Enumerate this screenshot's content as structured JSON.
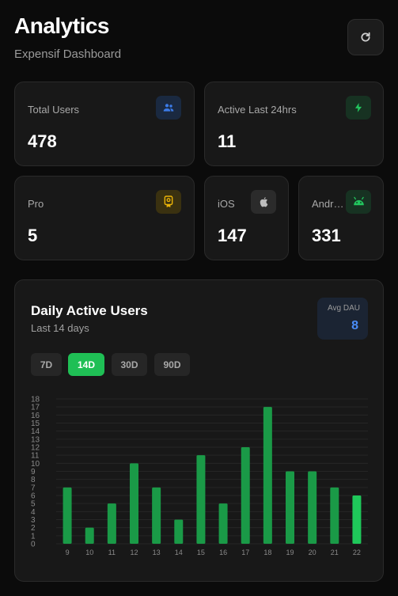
{
  "header": {
    "title": "Analytics",
    "subtitle": "Expensif Dashboard",
    "refresh_icon": "refresh-icon"
  },
  "stats": {
    "total_users": {
      "label": "Total Users",
      "value": "478",
      "icon": "users-icon",
      "icon_color": "#3b7be8",
      "icon_bg": "#1a2940"
    },
    "active_24h": {
      "label": "Active Last 24hrs",
      "value": "11",
      "icon": "bolt-icon",
      "icon_color": "#22c55e",
      "icon_bg": "#173222"
    },
    "pro": {
      "label": "Pro",
      "value": "5",
      "icon": "badge-icon",
      "icon_color": "#eab308",
      "icon_bg": "#3a3110"
    },
    "ios": {
      "label": "iOS",
      "value": "147",
      "icon": "apple-icon",
      "icon_color": "#bdbdbd",
      "icon_bg": "#2b2b2b"
    },
    "android": {
      "label": "Andr…",
      "value": "331",
      "icon": "android-icon",
      "icon_color": "#22c55e",
      "icon_bg": "#173222"
    }
  },
  "chart": {
    "title": "Daily Active Users",
    "subtitle": "Last 14 days",
    "avg_label": "Avg DAU",
    "avg_value": "8",
    "ranges": [
      "7D",
      "14D",
      "30D",
      "90D"
    ],
    "active_range": "14D",
    "colors": {
      "bar": "#1a9a47",
      "bar_latest": "#1fc85a",
      "accent": "#1fbf55"
    }
  },
  "chart_data": {
    "type": "bar",
    "categories": [
      "9",
      "10",
      "11",
      "12",
      "13",
      "14",
      "15",
      "16",
      "17",
      "18",
      "19",
      "20",
      "21",
      "22"
    ],
    "values": [
      7,
      2,
      5,
      10,
      7,
      3,
      11,
      5,
      12,
      17,
      9,
      9,
      7,
      6
    ],
    "ylim": [
      0,
      18
    ],
    "yticks": [
      "0",
      "1",
      "2",
      "3",
      "4",
      "5",
      "6",
      "7",
      "8",
      "9",
      "10",
      "11",
      "12",
      "13",
      "14",
      "15",
      "16",
      "17",
      "18"
    ],
    "grid": true
  }
}
